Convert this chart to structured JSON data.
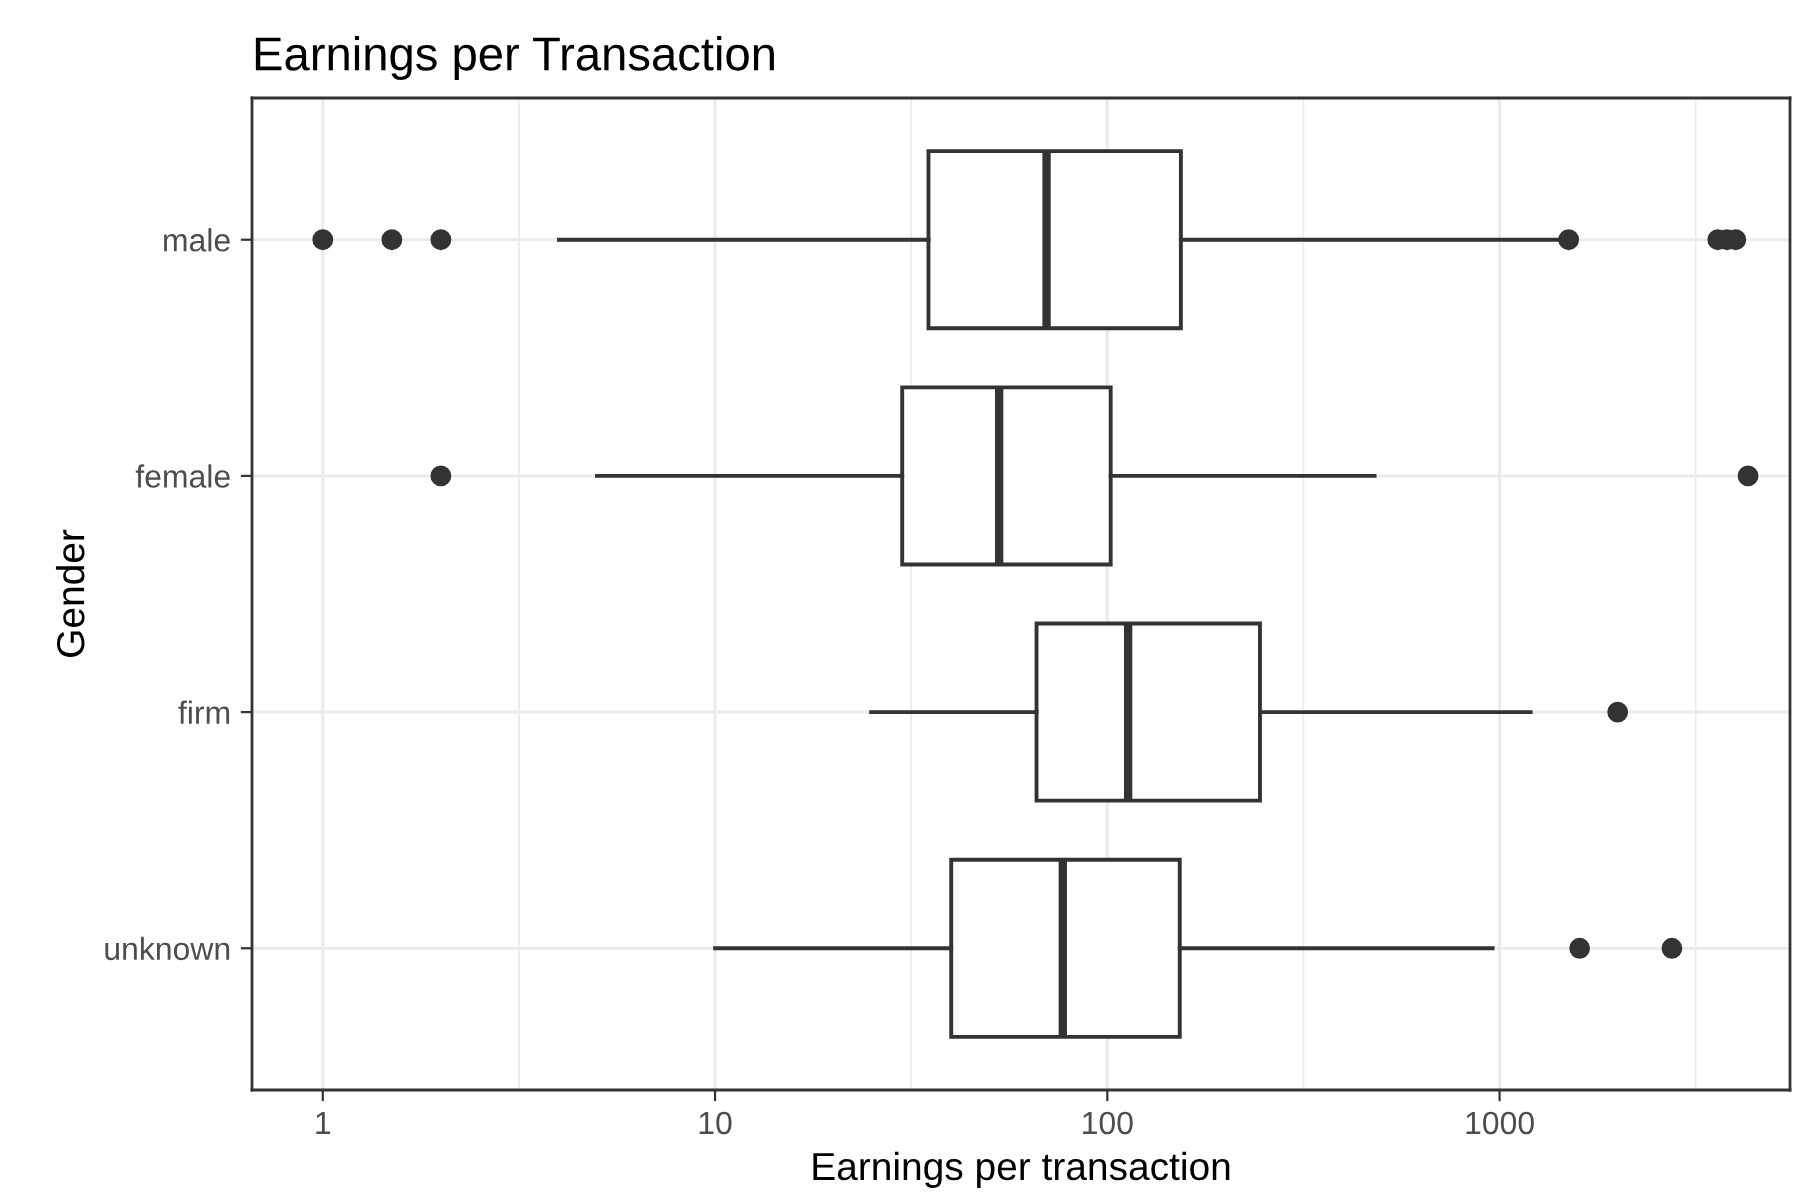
{
  "chart_data": {
    "type": "box",
    "title": "Earnings per Transaction",
    "xlabel": "Earnings per transaction",
    "ylabel": "Gender",
    "orientation": "horizontal",
    "log": "x",
    "grid": true,
    "categories": [
      "male",
      "female",
      "firm",
      "unknown"
    ],
    "boxes": [
      {
        "low": 4,
        "q1": 35,
        "median": 70,
        "q3": 154,
        "high": 1450,
        "outliers": [
          1,
          1.5,
          2,
          1500,
          3600,
          3800,
          4000
        ]
      },
      {
        "low": 5,
        "q1": 30,
        "median": 53,
        "q3": 102,
        "high": 480,
        "outliers": [
          2,
          4300
        ]
      },
      {
        "low": 25,
        "q1": 66,
        "median": 113,
        "q3": 245,
        "high": 1200,
        "outliers": [
          2000
        ]
      },
      {
        "low": 10,
        "q1": 40,
        "median": 77,
        "q3": 153,
        "high": 960,
        "outliers": [
          1600,
          2750
        ]
      }
    ],
    "xlim": [
      0.66,
      5500
    ],
    "xticks": [
      1,
      10,
      100,
      1000
    ]
  }
}
